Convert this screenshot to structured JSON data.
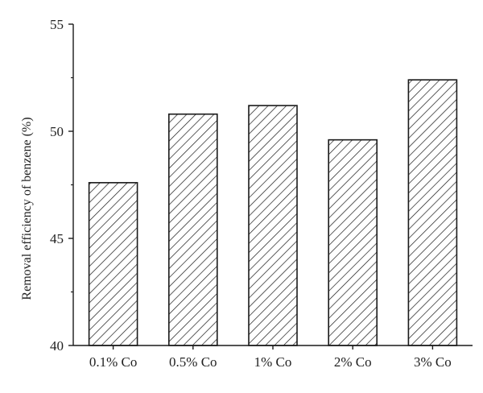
{
  "chart_data": {
    "type": "bar",
    "title": "",
    "xlabel": "",
    "ylabel": "Removal efficiency of benzene (%)",
    "categories": [
      "0.1% Co",
      "0.5% Co",
      "1% Co",
      "2% Co",
      "3% Co"
    ],
    "values": [
      47.6,
      50.8,
      51.2,
      49.6,
      52.4
    ],
    "ylim": [
      40,
      55
    ],
    "yticks": [
      40,
      45,
      50,
      55
    ],
    "y_minor_step": 2.5,
    "grid": false,
    "legend": "none",
    "bar_fill": "hatched",
    "colors": {
      "bar_edge": "#1a1a1a",
      "hatch": "#1a1a1a",
      "axis": "#1a1a1a",
      "background": "#ffffff"
    }
  }
}
